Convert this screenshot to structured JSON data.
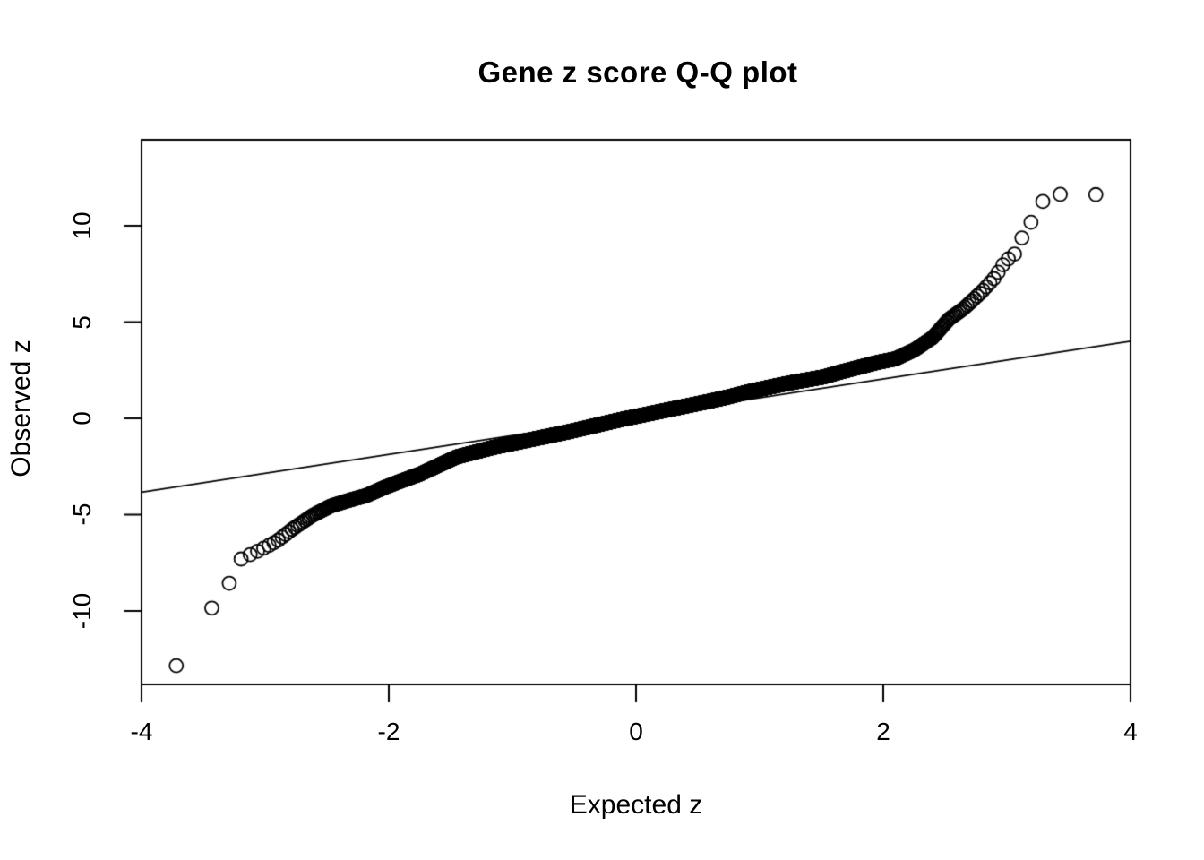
{
  "figure": {
    "background": "#ffffff",
    "foreground": "#000000"
  },
  "chart_data": {
    "type": "scatter",
    "title": "Gene z score Q-Q plot",
    "xlabel": "Expected z",
    "ylabel": "Observed z",
    "marker": "open-circle",
    "grid": false,
    "legend": null,
    "xlim": [
      -4,
      4
    ],
    "ylim": [
      -13.81,
      14.47
    ],
    "x_ticks": [
      -4,
      -2,
      0,
      2,
      4
    ],
    "y_ticks": [
      -10,
      -5,
      0,
      5,
      10
    ],
    "x_tick_labels": [
      "-4",
      "-2",
      "0",
      "2",
      "4"
    ],
    "y_tick_labels": [
      "-10",
      "-5",
      "0",
      "5",
      "10"
    ],
    "n_points": 5000,
    "reference_line": {
      "slope": 0.98,
      "intercept": 0.09
    },
    "curve_anchors": [
      [
        -3.72,
        -12.85
      ],
      [
        -3.55,
        -10.85
      ],
      [
        -3.44,
        -9.9
      ],
      [
        -3.37,
        -9.45
      ],
      [
        -3.29,
        -8.55
      ],
      [
        -3.25,
        -7.8
      ],
      [
        -3.21,
        -7.35
      ],
      [
        -3.15,
        -7.15
      ],
      [
        -3.08,
        -6.95
      ],
      [
        -3.0,
        -6.7
      ],
      [
        -2.9,
        -6.35
      ],
      [
        -2.78,
        -5.75
      ],
      [
        -2.62,
        -5.05
      ],
      [
        -2.47,
        -4.55
      ],
      [
        -2.32,
        -4.25
      ],
      [
        -2.18,
        -4.0
      ],
      [
        -2.04,
        -3.6
      ],
      [
        -1.9,
        -3.25
      ],
      [
        -1.75,
        -2.9
      ],
      [
        -1.6,
        -2.45
      ],
      [
        -1.45,
        -2.0
      ],
      [
        -1.3,
        -1.75
      ],
      [
        -1.15,
        -1.5
      ],
      [
        -1.0,
        -1.3
      ],
      [
        -0.85,
        -1.1
      ],
      [
        -0.7,
        -0.9
      ],
      [
        -0.55,
        -0.7
      ],
      [
        -0.4,
        -0.48
      ],
      [
        -0.25,
        -0.25
      ],
      [
        -0.1,
        -0.03
      ],
      [
        0.0,
        0.1
      ],
      [
        0.15,
        0.3
      ],
      [
        0.3,
        0.5
      ],
      [
        0.45,
        0.7
      ],
      [
        0.6,
        0.9
      ],
      [
        0.75,
        1.12
      ],
      [
        0.94,
        1.43
      ],
      [
        1.1,
        1.65
      ],
      [
        1.25,
        1.85
      ],
      [
        1.4,
        2.02
      ],
      [
        1.52,
        2.16
      ],
      [
        1.65,
        2.4
      ],
      [
        1.8,
        2.65
      ],
      [
        1.95,
        2.9
      ],
      [
        2.1,
        3.1
      ],
      [
        2.25,
        3.55
      ],
      [
        2.4,
        4.2
      ],
      [
        2.53,
        5.15
      ],
      [
        2.65,
        5.7
      ],
      [
        2.8,
        6.6
      ],
      [
        2.9,
        7.3
      ],
      [
        2.98,
        8.1
      ],
      [
        3.04,
        8.45
      ],
      [
        3.09,
        8.65
      ],
      [
        3.12,
        9.35
      ],
      [
        3.15,
        9.85
      ],
      [
        3.19,
        10.15
      ],
      [
        3.23,
        10.45
      ],
      [
        3.26,
        11.15
      ],
      [
        3.3,
        11.3
      ],
      [
        3.36,
        11.5
      ],
      [
        3.44,
        11.65
      ],
      [
        3.55,
        11.6
      ],
      [
        3.71,
        11.62
      ]
    ]
  }
}
